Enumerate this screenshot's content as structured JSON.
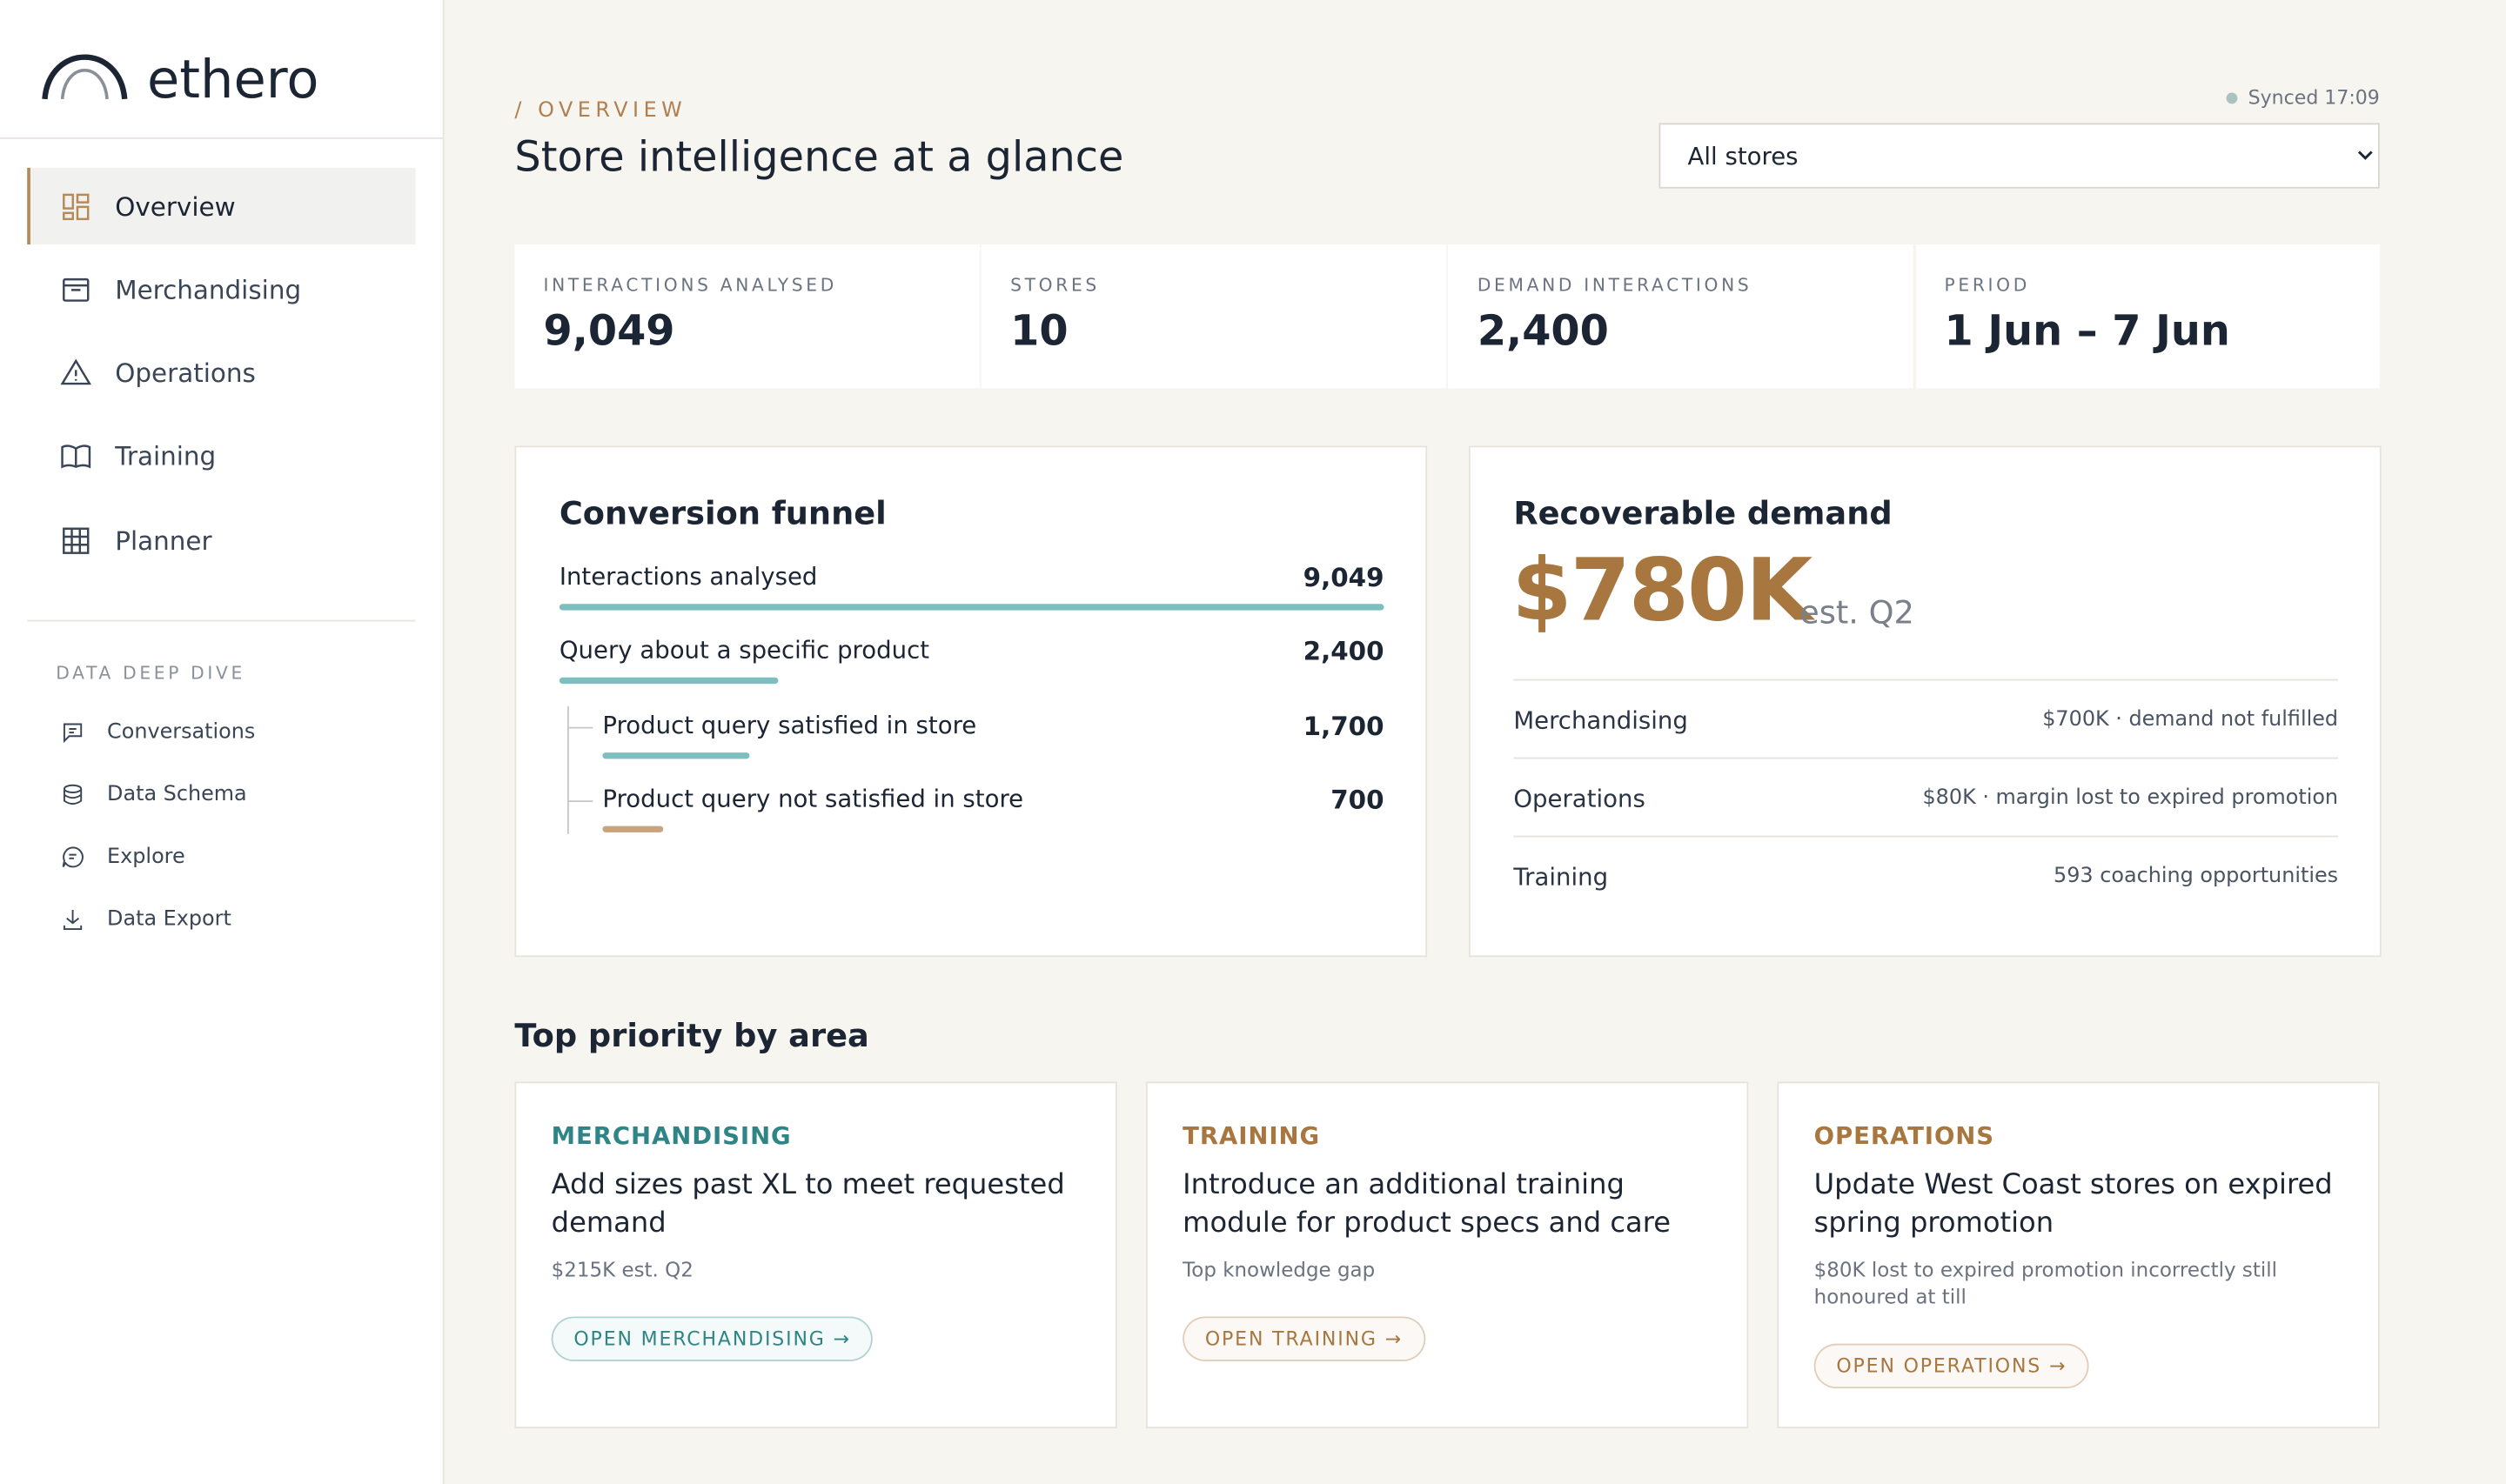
{
  "sidebar": {
    "logo": "ethero",
    "nav": [
      "Overview",
      "Merchandising",
      "Operations",
      "Training",
      "Planner"
    ],
    "section_title": "DATA DEEP DIVE",
    "links": [
      "Conversations",
      "Data Schema",
      "Explore",
      "Data Export"
    ]
  },
  "header": {
    "eyebrow": "/ OVERVIEW",
    "title": "Store intelligence at a glance",
    "synced": "Synced 17:09",
    "store_select": "All stores"
  },
  "stats": [
    {
      "label": "INTERACTIONS ANALYSED",
      "value": "9,049"
    },
    {
      "label": "STORES",
      "value": "10"
    },
    {
      "label": "DEMAND INTERACTIONS",
      "value": "2,400"
    },
    {
      "label": "PERIOD",
      "value": "1 Jun – 7 Jun"
    }
  ],
  "funnel": {
    "title": "Conversion funnel",
    "rows": [
      {
        "label": "Interactions analysed",
        "value": 9049,
        "value_label": "9,049",
        "color": "#7dbfbf"
      },
      {
        "label": "Query about a specific product",
        "value": 2400,
        "value_label": "2,400",
        "color": "#7dbfbf"
      },
      {
        "label": "Product query satisfied in store",
        "value": 1700,
        "value_label": "1,700",
        "color": "#7dbfbf"
      },
      {
        "label": "Product query not satisfied in store",
        "value": 700,
        "value_label": "700",
        "color": "#c9a37c"
      }
    ]
  },
  "demand": {
    "title": "Recoverable demand",
    "amount": "$780K",
    "note": "est. Q2",
    "rows": [
      {
        "label": "Merchandising",
        "detail": "$700K · demand not fulfilled"
      },
      {
        "label": "Operations",
        "detail": "$80K · margin lost to expired promotion"
      },
      {
        "label": "Training",
        "detail": "593 coaching opportunities"
      }
    ]
  },
  "priorities": {
    "title": "Top priority by area",
    "cards": [
      {
        "area": "MERCHANDISING",
        "title": "Add sizes past XL to meet requested demand",
        "detail": "$215K est. Q2",
        "button": "OPEN MERCHANDISING →",
        "color": "#2f8585"
      },
      {
        "area": "TRAINING",
        "title": "Introduce an additional training module for product specs and care",
        "detail": "Top knowledge gap",
        "button": "OPEN TRAINING →",
        "color": "#a8773f"
      },
      {
        "area": "OPERATIONS",
        "title": "Update West Coast stores on expired spring promotion",
        "detail": "$80K lost to expired promotion incorrectly still honoured at till",
        "button": "OPEN OPERATIONS →",
        "color": "#a8773f"
      }
    ]
  }
}
